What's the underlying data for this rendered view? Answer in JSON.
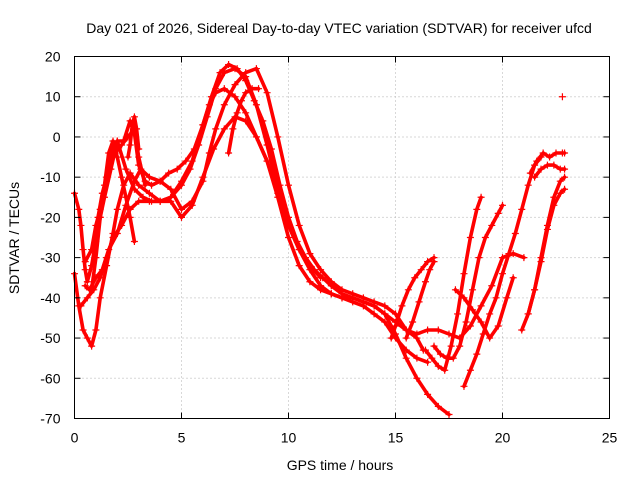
{
  "chart_data": {
    "type": "scatter",
    "title": "Day 021 of 2026, Sidereal Day-to-day VTEC variation (SDTVAR) for receiver ufcd",
    "xlabel": "GPS time / hours",
    "ylabel": "SDTVAR / TECUs",
    "xlim": [
      0,
      25
    ],
    "ylim": [
      -70,
      20
    ],
    "xticks": [
      0,
      5,
      10,
      15,
      20,
      25
    ],
    "yticks": [
      -70,
      -60,
      -50,
      -40,
      -30,
      -20,
      -10,
      0,
      10,
      20
    ],
    "xtick_labels": [
      "0",
      "5",
      "10",
      "15",
      "20",
      "25"
    ],
    "ytick_labels": [
      "-70",
      "-60",
      "-50",
      "-40",
      "-30",
      "-20",
      "-10",
      "0",
      "10",
      "20"
    ],
    "grid": true,
    "marker": "+",
    "color": "#ff0000",
    "series": [
      {
        "name": "s1",
        "x": [
          0.0,
          0.2,
          0.4,
          0.6,
          0.8,
          1.0,
          1.2,
          1.5,
          1.8,
          2.0,
          2.3,
          2.6,
          3.0,
          3.5,
          4.0,
          4.5,
          5.0,
          5.5,
          6.0,
          6.3,
          6.6,
          7.0,
          7.5,
          8.0,
          8.5,
          9.0,
          9.5,
          10.0,
          10.5,
          11.0,
          11.5
        ],
        "y": [
          -34,
          -42,
          -48,
          -50,
          -52,
          -48,
          -40,
          -32,
          -24,
          -18,
          -12,
          -9,
          -12,
          -14,
          -16,
          -15,
          -11,
          -6,
          3,
          8,
          11,
          12,
          10,
          6,
          0,
          -6,
          -14,
          -22,
          -28,
          -32,
          -35
        ]
      },
      {
        "name": "s2",
        "x": [
          0.0,
          0.2,
          0.3,
          0.4,
          0.5,
          0.6,
          0.8,
          1.0,
          1.2,
          1.4,
          1.7,
          2.0,
          2.4,
          2.8,
          3.2,
          3.6,
          4.0,
          4.5,
          5.0,
          5.4,
          5.8,
          6.2,
          6.6,
          7.0,
          7.5,
          8.0,
          8.5,
          9.0,
          9.5,
          10.0,
          10.5,
          11.0,
          11.5,
          12.0,
          12.5,
          13.0,
          13.5,
          14.0,
          14.5,
          15.0,
          15.5,
          16.0,
          16.5,
          17.0,
          17.5
        ],
        "y": [
          -14,
          -18,
          -22,
          -28,
          -33,
          -36,
          -32,
          -26,
          -20,
          -15,
          -8,
          -1,
          -8,
          -13,
          -15,
          -16,
          -16,
          -15,
          -12,
          -8,
          -2,
          5,
          12,
          16,
          17,
          15,
          8,
          -2,
          -13,
          -22,
          -28,
          -33,
          -37,
          -39,
          -40,
          -40,
          -41,
          -42,
          -44,
          -49,
          -55,
          -60,
          -64,
          -67,
          -69
        ]
      },
      {
        "name": "s3",
        "x": [
          0.3,
          0.6,
          0.9,
          1.2,
          1.5,
          1.8,
          2.2,
          2.6,
          3.0,
          3.5,
          4.0,
          4.5,
          5.0,
          5.5,
          6.0,
          6.5,
          7.0,
          7.5,
          8.0,
          8.5,
          9.0,
          9.5,
          10.0,
          10.5,
          11.0,
          11.5,
          12.0,
          12.5,
          13.0,
          13.5,
          14.0,
          14.5,
          15.0,
          15.5,
          16.0,
          16.5
        ],
        "y": [
          -42,
          -40,
          -38,
          -35,
          -30,
          -25,
          -22,
          -18,
          -16,
          -16,
          -16,
          -16,
          -20,
          -17,
          -10,
          -3,
          2,
          5,
          4,
          0,
          -6,
          -15,
          -25,
          -32,
          -36,
          -38,
          -39,
          -40,
          -41,
          -42,
          -44,
          -46,
          -50,
          -53,
          -55,
          -56
        ]
      },
      {
        "name": "s4",
        "x": [
          0.5,
          0.8,
          1.0,
          1.2,
          1.5,
          1.8,
          2.0,
          2.3,
          2.6,
          2.8,
          3.0,
          3.3,
          3.6,
          4.0,
          4.4,
          4.8,
          5.2,
          5.6,
          6.0,
          6.4,
          6.8,
          7.2,
          7.6,
          8.0,
          8.4,
          8.8,
          9.2,
          9.6,
          10.0,
          10.4,
          10.8,
          11.2,
          11.6,
          12.0,
          12.5,
          13.0,
          13.5,
          14.0,
          14.5,
          15.0,
          15.5,
          16.0,
          16.5,
          17.0,
          17.5,
          18.0,
          18.5,
          19.0,
          19.5,
          20.0,
          20.5,
          21.0
        ],
        "y": [
          -31,
          -28,
          -22,
          -18,
          -10,
          -3,
          -1,
          -1,
          4,
          1,
          -7,
          -11,
          -12,
          -11,
          -9,
          -8,
          -6,
          -3,
          3,
          10,
          16,
          18,
          17,
          14,
          9,
          4,
          -3,
          -12,
          -20,
          -26,
          -30,
          -33,
          -35,
          -37,
          -39,
          -40,
          -41,
          -42,
          -44,
          -46,
          -48,
          -49,
          -48,
          -48,
          -49,
          -50,
          -47,
          -42,
          -37,
          -30,
          -29,
          -30
        ]
      },
      {
        "name": "s5",
        "x": [
          0.5,
          0.7,
          1.0,
          1.3,
          1.6,
          2.0,
          2.4,
          2.8,
          3.1,
          3.5,
          4.0,
          4.5,
          5.0,
          5.5,
          6.0,
          6.3,
          6.6,
          7.0,
          7.5,
          8.0,
          8.5,
          9.0,
          9.5,
          10.0,
          10.5,
          11.0,
          11.5,
          12.0,
          12.5,
          13.0,
          13.5,
          14.0,
          14.5,
          15.0,
          15.5,
          16.0,
          16.3
        ],
        "y": [
          -37,
          -38,
          -35,
          -33,
          -28,
          -24,
          -17,
          -11,
          -8,
          -10,
          -11,
          -13,
          -18,
          -16,
          -11,
          -4,
          2,
          8,
          13,
          16,
          17,
          11,
          0,
          -12,
          -22,
          -29,
          -33,
          -36,
          -38,
          -39,
          -40,
          -41,
          -42,
          -44,
          -48,
          -50,
          -53
        ]
      },
      {
        "name": "s6",
        "x": [
          0.8,
          1.0,
          1.2,
          1.4,
          1.6,
          1.8,
          2.0,
          2.2,
          2.4,
          2.6,
          2.8
        ],
        "y": [
          -38,
          -30,
          -20,
          -12,
          -4,
          -1,
          -5,
          -10,
          -15,
          -20,
          -26
        ]
      },
      {
        "name": "s7",
        "x": [
          1.1,
          1.3,
          1.6,
          1.9,
          2.2,
          2.5,
          2.8,
          3.0,
          3.3
        ],
        "y": [
          -20,
          -14,
          -8,
          -4,
          -2,
          0,
          2,
          -5,
          -12
        ]
      },
      {
        "name": "s8",
        "x": [
          14.8,
          15.0,
          15.3,
          15.6,
          15.9,
          16.2,
          16.5,
          16.8
        ],
        "y": [
          -50,
          -47,
          -42,
          -38,
          -35,
          -33,
          -31,
          -30
        ]
      },
      {
        "name": "s9",
        "x": [
          15.5,
          15.8,
          16.1,
          16.4,
          16.6,
          16.8
        ],
        "y": [
          -50,
          -46,
          -41,
          -36,
          -33,
          -31
        ]
      },
      {
        "name": "s10",
        "x": [
          16.4,
          16.7,
          17.0,
          17.3,
          17.6,
          17.9,
          18.2,
          18.5,
          18.8,
          19.0
        ],
        "y": [
          -53,
          -55,
          -57,
          -58,
          -52,
          -44,
          -34,
          -25,
          -18,
          -15
        ]
      },
      {
        "name": "s11",
        "x": [
          16.8,
          17.1,
          17.4,
          17.7,
          18.0,
          18.3,
          18.6,
          18.9,
          19.2,
          19.5,
          19.8,
          20.0
        ],
        "y": [
          -52,
          -54,
          -55,
          -55,
          -52,
          -46,
          -38,
          -30,
          -25,
          -22,
          -19,
          -17
        ]
      },
      {
        "name": "s12",
        "x": [
          17.8,
          18.2,
          18.6,
          19.0,
          19.4,
          19.8,
          20.2,
          20.5
        ],
        "y": [
          -38,
          -40,
          -43,
          -46,
          -50,
          -47,
          -40,
          -35
        ]
      },
      {
        "name": "s13",
        "x": [
          18.2,
          18.5,
          18.8,
          19.1,
          19.4,
          19.7,
          20.0,
          20.3,
          20.6,
          20.9,
          21.2,
          21.5,
          21.8
        ],
        "y": [
          -62,
          -58,
          -54,
          -49,
          -44,
          -40,
          -34,
          -29,
          -24,
          -18,
          -12,
          -7,
          -5
        ]
      },
      {
        "name": "s14",
        "x": [
          20.9,
          21.2,
          21.5,
          21.8,
          22.1,
          22.4,
          22.7,
          22.9
        ],
        "y": [
          -48,
          -44,
          -38,
          -31,
          -23,
          -17,
          -14,
          -13
        ]
      },
      {
        "name": "s15",
        "x": [
          21.2,
          21.5,
          21.8,
          22.1,
          22.4,
          22.7,
          22.9
        ],
        "y": [
          -44,
          -38,
          -30,
          -22,
          -15,
          -11,
          -10
        ]
      },
      {
        "name": "s16",
        "x": [
          21.3,
          21.6,
          21.9,
          22.2,
          22.5,
          22.8,
          22.9
        ],
        "y": [
          -9,
          -6,
          -4,
          -5,
          -4,
          -4,
          -4
        ]
      },
      {
        "name": "s17",
        "x": [
          21.5,
          21.8,
          22.1,
          22.4,
          22.7,
          22.9
        ],
        "y": [
          -10,
          -8,
          -7,
          -7,
          -8,
          -8
        ]
      },
      {
        "name": "s18",
        "x": [
          7.2,
          7.4,
          7.6,
          7.8,
          8.0,
          8.3,
          8.6
        ],
        "y": [
          -4,
          2,
          6,
          9,
          11,
          12,
          12
        ]
      },
      {
        "name": "s19",
        "x": [
          2.5,
          2.6,
          2.7,
          2.8,
          2.9,
          3.0
        ],
        "y": [
          -5,
          -2,
          3,
          5,
          2,
          -3
        ]
      },
      {
        "name": "s20",
        "x": [
          22.8
        ],
        "y": [
          10
        ]
      }
    ]
  }
}
